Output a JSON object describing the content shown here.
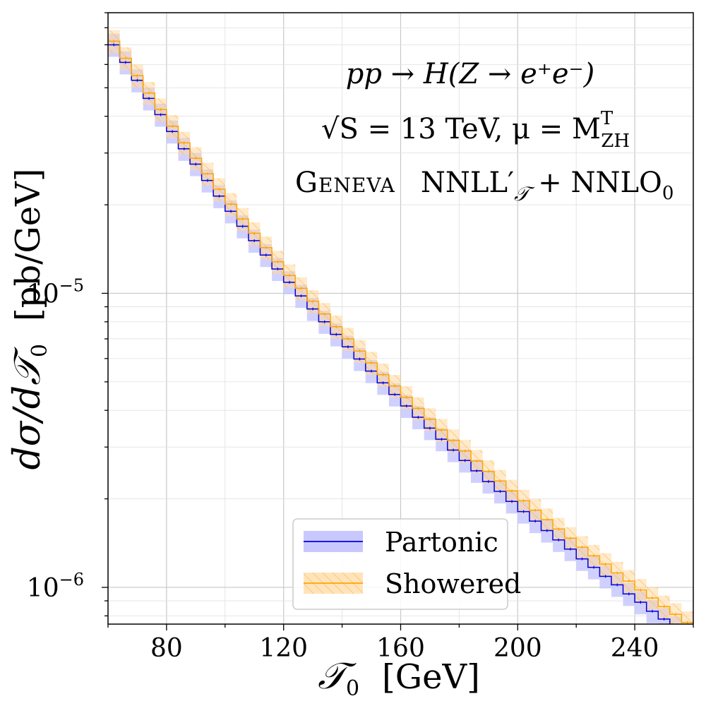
{
  "chart_data": {
    "type": "line",
    "step": true,
    "xlabel_symbol": "𝒯",
    "xlabel_sub": "0",
    "xlabel_unit": "[GeV]",
    "ylabel_main": "dσ/d𝒯",
    "ylabel_sub": "0",
    "ylabel_unit": "[pb/GeV]",
    "xlim": [
      60,
      260
    ],
    "ylim": [
      7.5e-07,
      9e-05
    ],
    "y_scale": "log",
    "x_ticks": [
      80,
      120,
      160,
      200,
      240
    ],
    "x_tick_labels": [
      "80",
      "120",
      "160",
      "200",
      "240"
    ],
    "y_tick_labels": [
      {
        "value": 1e-05,
        "base": "10",
        "exp": "−5"
      },
      {
        "value": 1e-06,
        "base": "10",
        "exp": "−6"
      }
    ],
    "grid": true,
    "bin_width": 4,
    "annotations": [
      "pp → H(Z → e⁺e⁻)",
      "√S = 13 TeV,  μ = M",
      "T",
      "ZH",
      "Geneva",
      "NNLL′",
      "𝒯",
      " + NNLO",
      "0"
    ],
    "legend_position": "lower-center",
    "series": [
      {
        "name": "Partonic",
        "line_color": "#0000e0",
        "band_color": "#c8c8ff",
        "values": [
          7e-05,
          6.1e-05,
          5.3e-05,
          4.6e-05,
          4.05e-05,
          3.55e-05,
          3.1e-05,
          2.75e-05,
          2.42e-05,
          2.14e-05,
          1.9e-05,
          1.69e-05,
          1.51e-05,
          1.35e-05,
          1.21e-05,
          1.09e-05,
          9.8e-06,
          8.85e-06,
          8e-06,
          7.25e-06,
          6.58e-06,
          5.98e-06,
          5.44e-06,
          4.96e-06,
          4.53e-06,
          4.14e-06,
          3.79e-06,
          3.48e-06,
          3.19e-06,
          2.93e-06,
          2.7e-06,
          2.49e-06,
          2.29e-06,
          2.12e-06,
          1.96e-06,
          1.81e-06,
          1.68e-06,
          1.56e-06,
          1.45e-06,
          1.35e-06,
          1.25e-06,
          1.17e-06,
          1.09e-06,
          1.02e-06,
          9.5e-07,
          8.9e-07,
          8.3e-07,
          7.8e-07,
          7.3e-07,
          6.9e-07
        ]
      },
      {
        "name": "Showered",
        "line_color": "#ffa500",
        "band_color": "#ffd9a0",
        "values": [
          7.2e-05,
          6.3e-05,
          5.5e-05,
          4.8e-05,
          4.22e-05,
          3.7e-05,
          3.25e-05,
          2.88e-05,
          2.55e-05,
          2.26e-05,
          2.01e-05,
          1.79e-05,
          1.6e-05,
          1.43e-05,
          1.28e-05,
          1.15e-05,
          1.04e-05,
          9.4e-06,
          8.5e-06,
          7.7e-06,
          7e-06,
          6.36e-06,
          5.8e-06,
          5.29e-06,
          4.84e-06,
          4.43e-06,
          4.06e-06,
          3.73e-06,
          3.43e-06,
          3.16e-06,
          2.91e-06,
          2.69e-06,
          2.48e-06,
          2.3e-06,
          2.13e-06,
          1.97e-06,
          1.83e-06,
          1.7e-06,
          1.58e-06,
          1.47e-06,
          1.37e-06,
          1.28e-06,
          1.2e-06,
          1.12e-06,
          1.05e-06,
          9.8e-07,
          9.2e-07,
          8.6e-07,
          8.1e-07,
          7.6e-07
        ]
      }
    ]
  }
}
